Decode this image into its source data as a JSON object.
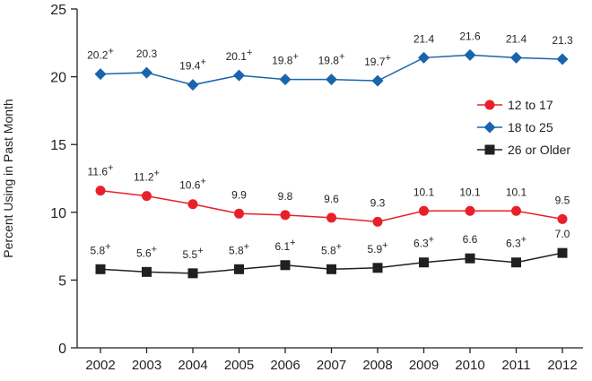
{
  "chart_data": {
    "type": "line",
    "title": "",
    "xlabel": "",
    "ylabel": "Percent Using in Past Month",
    "ylim": [
      0,
      25
    ],
    "yticks": [
      0,
      5,
      10,
      15,
      20,
      25
    ],
    "categories": [
      "2002",
      "2003",
      "2004",
      "2005",
      "2006",
      "2007",
      "2008",
      "2009",
      "2010",
      "2011",
      "2012"
    ],
    "grid": false,
    "legend_position": "right",
    "significance_marker": "+",
    "series": [
      {
        "name": "12 to 17",
        "color": "#e8202a",
        "marker": "circle",
        "values": [
          11.6,
          11.2,
          10.6,
          9.9,
          9.8,
          9.6,
          9.3,
          10.1,
          10.1,
          10.1,
          9.5
        ],
        "labels": [
          "11.6",
          "11.2",
          "10.6",
          "9.9",
          "9.8",
          "9.6",
          "9.3",
          "10.1",
          "10.1",
          "10.1",
          "9.5"
        ],
        "significant": [
          true,
          true,
          true,
          false,
          false,
          false,
          false,
          false,
          false,
          false,
          false
        ]
      },
      {
        "name": "18 to 25",
        "color": "#1a64ad",
        "marker": "diamond",
        "values": [
          20.2,
          20.3,
          19.4,
          20.1,
          19.8,
          19.8,
          19.7,
          21.4,
          21.6,
          21.4,
          21.3
        ],
        "labels": [
          "20.2",
          "20.3",
          "19.4",
          "20.1",
          "19.8",
          "19.8",
          "19.7",
          "21.4",
          "21.6",
          "21.4",
          "21.3"
        ],
        "significant": [
          true,
          false,
          true,
          true,
          true,
          true,
          true,
          false,
          false,
          false,
          false
        ]
      },
      {
        "name": "26 or Older",
        "color": "#231f20",
        "marker": "square",
        "values": [
          5.8,
          5.6,
          5.5,
          5.8,
          6.1,
          5.8,
          5.9,
          6.3,
          6.6,
          6.3,
          7.0
        ],
        "labels": [
          "5.8",
          "5.6",
          "5.5",
          "5.8",
          "6.1",
          "5.8",
          "5.9",
          "6.3",
          "6.6",
          "6.3",
          "7.0"
        ],
        "significant": [
          true,
          true,
          true,
          true,
          true,
          true,
          true,
          true,
          false,
          true,
          false
        ]
      }
    ]
  }
}
